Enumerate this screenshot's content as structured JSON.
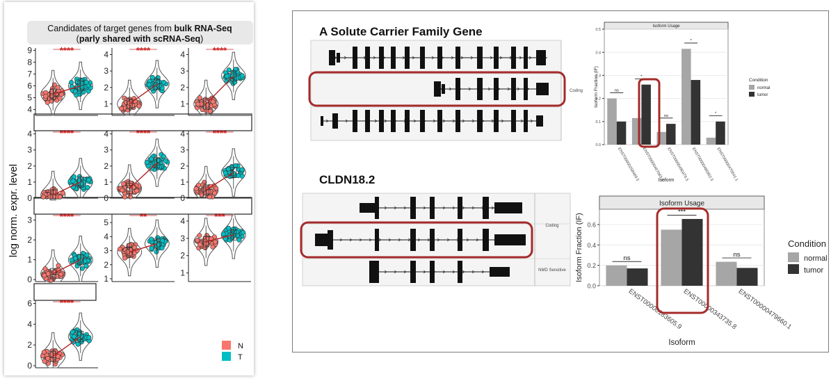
{
  "left_panel": {
    "title_pre": "Candidates of target genes from ",
    "title_bold": "bulk RNA-Seq",
    "subtitle_open": "(",
    "subtitle_bold": "parly shared with scRNA-Seq",
    "subtitle_close": ")",
    "ylabel": "log norm. expr. level",
    "legend": [
      {
        "label": "N",
        "color": "#f8766d"
      },
      {
        "label": "T",
        "color": "#00bfc4"
      }
    ],
    "group_colors": {
      "N": "#f8766d",
      "T": "#00bfc4",
      "line": "#b22222",
      "sig": "#cc2222"
    }
  },
  "chart_data": [
    {
      "type": "violin",
      "panel": "1-1",
      "ticks": [
        "4",
        "5",
        "6",
        "7",
        "8",
        "9"
      ],
      "ylim": [
        3.5,
        9.2
      ],
      "significance": "****",
      "median_N": 5.3,
      "median_T": 6.0
    },
    {
      "type": "violin",
      "panel": "1-2",
      "ticks": [
        "1",
        "2",
        "3",
        "4"
      ],
      "ylim": [
        0.3,
        4.4
      ],
      "significance": "****",
      "median_N": 1.0,
      "median_T": 2.2
    },
    {
      "type": "violin",
      "panel": "1-3",
      "ticks": [
        "1",
        "2",
        "3",
        "4"
      ],
      "ylim": [
        0.3,
        4.4
      ],
      "significance": "****",
      "median_N": 1.0,
      "median_T": 2.7
    },
    {
      "type": "violin",
      "panel": "2-1",
      "ticks": [
        "0",
        "1",
        "2",
        "3",
        "4"
      ],
      "ylim": [
        0,
        4.2
      ],
      "significance": "****",
      "median_N": 0.2,
      "median_T": 1.0
    },
    {
      "type": "violin",
      "panel": "2-2",
      "ticks": [
        "0",
        "1",
        "2",
        "3",
        "4"
      ],
      "ylim": [
        0,
        4.2
      ],
      "significance": "****",
      "median_N": 0.6,
      "median_T": 2.2
    },
    {
      "type": "violin",
      "panel": "2-3",
      "ticks": [
        "0",
        "1",
        "2",
        "3",
        "4"
      ],
      "ylim": [
        0,
        4.2
      ],
      "significance": "****",
      "median_N": 0.5,
      "median_T": 1.6
    },
    {
      "type": "violin",
      "panel": "3-1",
      "ticks": [
        "0",
        "1",
        "2",
        "3"
      ],
      "ylim": [
        -0.1,
        3.3
      ],
      "significance": "****",
      "median_N": 0.3,
      "median_T": 1.0
    },
    {
      "type": "violin",
      "panel": "3-2",
      "ticks": [
        "1",
        "2",
        "3",
        "4",
        "5"
      ],
      "ylim": [
        0.8,
        5.6
      ],
      "significance": "**",
      "median_N": 2.9,
      "median_T": 3.5
    },
    {
      "type": "violin",
      "panel": "3-3",
      "ticks": [
        "1",
        "2",
        "3",
        "4"
      ],
      "ylim": [
        0.5,
        4.4
      ],
      "significance": "***",
      "median_N": 2.8,
      "median_T": 3.2
    },
    {
      "type": "violin",
      "panel": "4-1",
      "ticks": [
        "0",
        "2",
        "4",
        "6"
      ],
      "ylim": [
        -0.2,
        6.3
      ],
      "significance": "****",
      "median_N": 0.9,
      "median_T": 2.8
    },
    {
      "type": "bar",
      "id": "slc-isoform",
      "title": "Isoform Usage",
      "categories": [
        "ENST00000258469.5",
        "ENST00000467063.6",
        "ENST00000490476.5",
        "ENST00000495952.5",
        "ENST00000470541.1"
      ],
      "series": [
        {
          "name": "normal",
          "values": [
            0.2,
            0.115,
            0.055,
            0.415,
            0.03
          ]
        },
        {
          "name": "tumor",
          "values": [
            0.1,
            0.26,
            0.09,
            0.28,
            0.1
          ]
        }
      ],
      "significance": [
        "ns",
        "*",
        "ns",
        "*",
        "*"
      ],
      "ylim": [
        0,
        0.5
      ],
      "ticks": [
        "0.0",
        "0.1",
        "0.2",
        "0.3",
        "0.4",
        "0.5"
      ],
      "xlabel": "Isoform",
      "ylabel": "Isoform Fraction (IF)",
      "legend_title": "Condition"
    },
    {
      "type": "bar",
      "id": "cldn-isoform",
      "title": "Isoform Usage",
      "categories": [
        "ENST00000183605.9",
        "ENST00000343735.8",
        "ENST00000479660.1"
      ],
      "series": [
        {
          "name": "normal",
          "values": [
            0.2,
            0.55,
            0.235
          ]
        },
        {
          "name": "tumor",
          "values": [
            0.17,
            0.655,
            0.175
          ]
        }
      ],
      "significance": [
        "ns",
        "***",
        "ns"
      ],
      "ylim": [
        0,
        0.75
      ],
      "ticks": [
        "0.0",
        "0.2",
        "0.4",
        "0.6"
      ],
      "xlabel": "Isoform",
      "ylabel": "Isoform Fraction (IF)",
      "legend_title": "Condition"
    }
  ],
  "right_panel": {
    "gene1_title": "A Solute Carrier Family Gene",
    "gene1_track_label": "Coding",
    "gene2_title": "CLDN18.2",
    "gene2_track_labels": [
      "Coding",
      "NMD Sensitive"
    ],
    "legend_labels": [
      "normal",
      "tumor"
    ],
    "colors": {
      "normal": "#a6a6a6",
      "tumor": "#333333",
      "highlight": "#a52a2a",
      "exon": "#111111"
    }
  }
}
